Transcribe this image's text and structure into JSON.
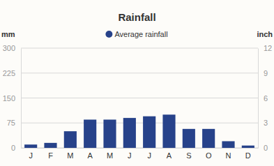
{
  "chart_data": {
    "type": "bar",
    "title": "Rainfall",
    "categories": [
      "J",
      "F",
      "M",
      "A",
      "M",
      "J",
      "J",
      "A",
      "S",
      "O",
      "N",
      "D"
    ],
    "series": [
      {
        "name": "Average rainfall",
        "color": "#27428a",
        "values": [
          10,
          15,
          50,
          85,
          85,
          90,
          95,
          100,
          57,
          57,
          20,
          7
        ]
      }
    ],
    "ylabel": "mm",
    "y2label": "inch",
    "ylim": [
      0,
      300
    ],
    "yticks": [
      0,
      75,
      150,
      225,
      300
    ],
    "y2lim": [
      0,
      12
    ],
    "y2ticks": [
      0,
      3,
      6,
      9,
      12
    ],
    "grid": true,
    "legend": "top"
  }
}
